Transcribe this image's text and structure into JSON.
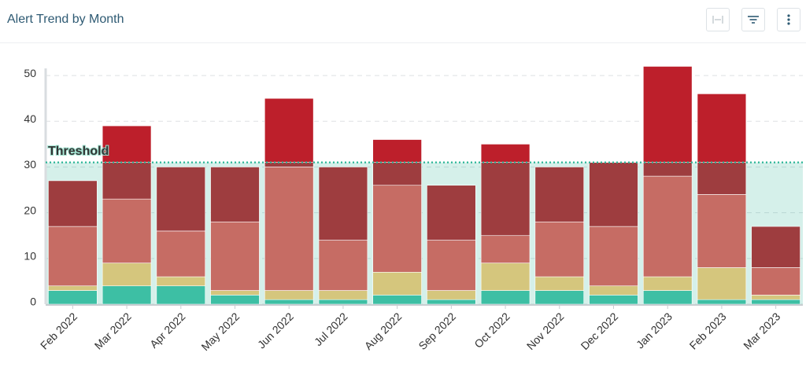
{
  "chart_data": {
    "type": "stacked_bar",
    "title": "Alert Trend by Month",
    "categories": [
      "Feb 2022",
      "Mar 2022",
      "Apr 2022",
      "May 2022",
      "Jun 2022",
      "Jul 2022",
      "Aug 2022",
      "Sep 2022",
      "Oct 2022",
      "Nov 2022",
      "Dec 2022",
      "Jan 2023",
      "Feb 2023",
      "Mar 2023"
    ],
    "series": [
      {
        "color": "#3dbfa4",
        "values": [
          3,
          4,
          4,
          2,
          1,
          1,
          2,
          1,
          3,
          3,
          2,
          3,
          1,
          1
        ]
      },
      {
        "color": "#d5c67d",
        "values": [
          1,
          5,
          2,
          1,
          2,
          2,
          5,
          2,
          6,
          3,
          2,
          3,
          7,
          1
        ]
      },
      {
        "color": "#c66c64",
        "values": [
          13,
          14,
          10,
          15,
          27,
          11,
          19,
          11,
          6,
          12,
          13,
          22,
          16,
          6
        ]
      },
      {
        "color": "#9e3d3f",
        "values": [
          10,
          16,
          14,
          12,
          15,
          16,
          10,
          12,
          20,
          12,
          14,
          24,
          22,
          9
        ]
      }
    ],
    "threshold": {
      "label": "Threshold",
      "value": 31,
      "color": "#2bb597",
      "over_color": "#bd1f2b"
    },
    "ylim": [
      0,
      55
    ],
    "yticks": [
      0,
      10,
      20,
      30,
      40,
      50
    ],
    "grid": true
  }
}
